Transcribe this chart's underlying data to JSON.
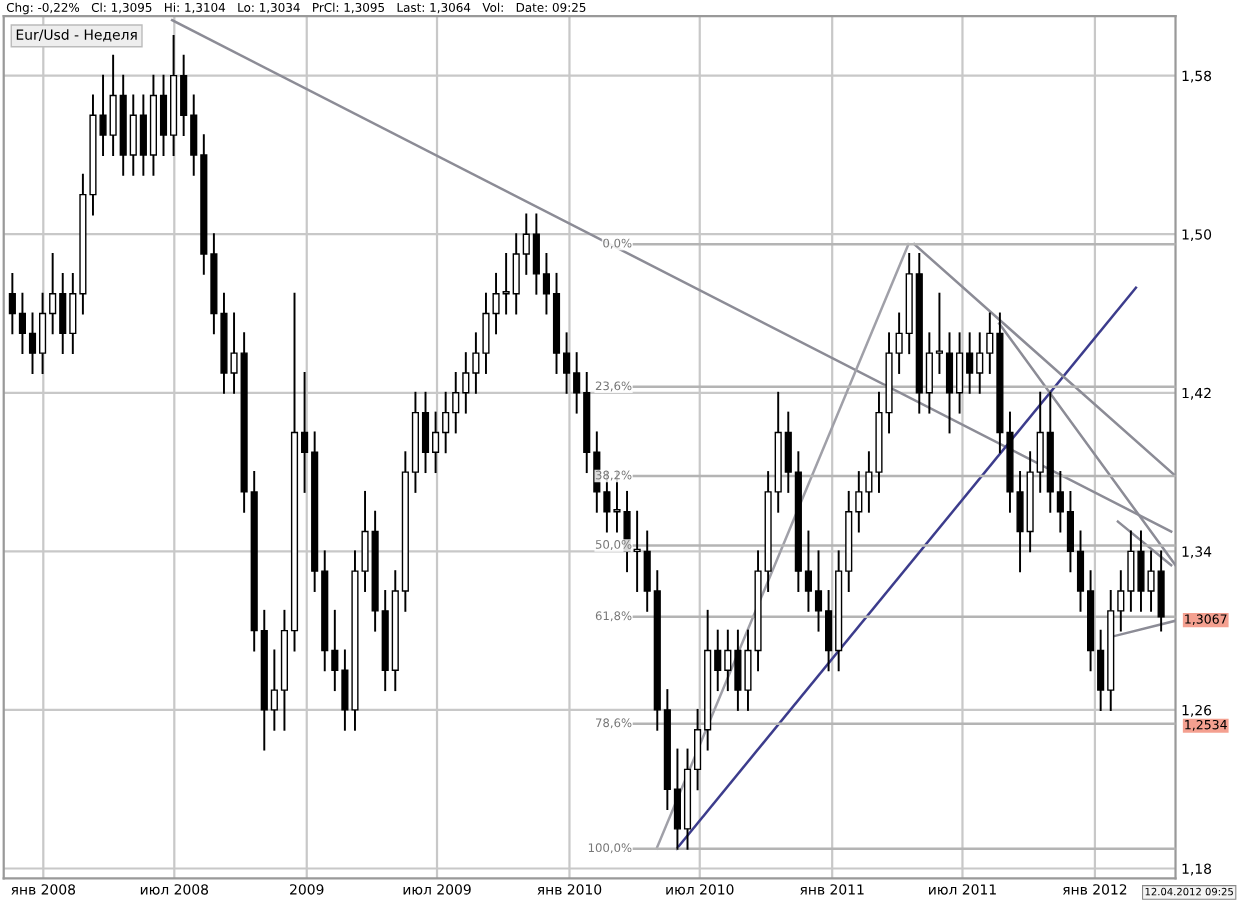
{
  "chart_data": {
    "type": "candlestick",
    "title": "Eur/Usd - Неделя",
    "x": [
      "2007-11-19",
      "2007-12-03",
      "2007-12-17",
      "2007-12-31",
      "2008-01-14",
      "2008-01-28",
      "2008-02-11",
      "2008-02-25",
      "2008-03-10",
      "2008-03-24",
      "2008-04-07",
      "2008-04-21",
      "2008-05-05",
      "2008-05-19",
      "2008-06-02",
      "2008-06-16",
      "2008-06-30",
      "2008-07-14",
      "2008-07-28",
      "2008-08-11",
      "2008-08-25",
      "2008-09-08",
      "2008-09-22",
      "2008-10-06",
      "2008-10-20",
      "2008-11-03",
      "2008-11-17",
      "2008-12-01",
      "2008-12-15",
      "2008-12-29",
      "2009-01-12",
      "2009-01-26",
      "2009-02-09",
      "2009-02-23",
      "2009-03-09",
      "2009-03-23",
      "2009-04-06",
      "2009-04-20",
      "2009-05-04",
      "2009-05-18",
      "2009-06-01",
      "2009-06-15",
      "2009-06-29",
      "2009-07-13",
      "2009-07-27",
      "2009-08-10",
      "2009-08-24",
      "2009-09-07",
      "2009-09-21",
      "2009-10-05",
      "2009-10-19",
      "2009-11-02",
      "2009-11-16",
      "2009-11-30",
      "2009-12-14",
      "2009-12-28",
      "2010-01-11",
      "2010-01-25",
      "2010-02-08",
      "2010-02-22",
      "2010-03-08",
      "2010-03-22",
      "2010-04-05",
      "2010-04-19",
      "2010-05-03",
      "2010-05-17",
      "2010-05-31",
      "2010-06-14",
      "2010-06-28",
      "2010-07-12",
      "2010-07-26",
      "2010-08-09",
      "2010-08-23",
      "2010-09-06",
      "2010-09-20",
      "2010-10-04",
      "2010-10-18",
      "2010-11-01",
      "2010-11-15",
      "2010-11-29",
      "2010-12-13",
      "2010-12-27",
      "2011-01-10",
      "2011-01-24",
      "2011-02-07",
      "2011-02-21",
      "2011-03-07",
      "2011-03-21",
      "2011-04-04",
      "2011-04-18",
      "2011-05-02",
      "2011-05-16",
      "2011-05-30",
      "2011-06-13",
      "2011-06-27",
      "2011-07-11",
      "2011-07-25",
      "2011-08-08",
      "2011-08-22",
      "2011-09-05",
      "2011-09-19",
      "2011-10-03",
      "2011-10-17",
      "2011-10-31",
      "2011-11-14",
      "2011-11-28",
      "2011-12-12",
      "2011-12-26",
      "2012-01-09",
      "2012-01-23",
      "2012-02-06",
      "2012-02-20",
      "2012-03-05",
      "2012-03-19",
      "2012-04-02"
    ],
    "ohlc": [
      [
        1.47,
        1.48,
        1.45,
        1.46
      ],
      [
        1.46,
        1.47,
        1.44,
        1.45
      ],
      [
        1.45,
        1.46,
        1.43,
        1.44
      ],
      [
        1.44,
        1.47,
        1.43,
        1.46
      ],
      [
        1.46,
        1.49,
        1.45,
        1.47
      ],
      [
        1.47,
        1.48,
        1.44,
        1.45
      ],
      [
        1.45,
        1.48,
        1.44,
        1.47
      ],
      [
        1.47,
        1.53,
        1.46,
        1.52
      ],
      [
        1.52,
        1.57,
        1.51,
        1.56
      ],
      [
        1.56,
        1.58,
        1.54,
        1.55
      ],
      [
        1.55,
        1.59,
        1.54,
        1.57
      ],
      [
        1.57,
        1.58,
        1.53,
        1.54
      ],
      [
        1.54,
        1.57,
        1.53,
        1.56
      ],
      [
        1.56,
        1.57,
        1.53,
        1.54
      ],
      [
        1.54,
        1.58,
        1.53,
        1.57
      ],
      [
        1.57,
        1.58,
        1.54,
        1.55
      ],
      [
        1.55,
        1.6,
        1.54,
        1.58
      ],
      [
        1.58,
        1.59,
        1.55,
        1.56
      ],
      [
        1.56,
        1.57,
        1.53,
        1.54
      ],
      [
        1.54,
        1.55,
        1.48,
        1.49
      ],
      [
        1.49,
        1.5,
        1.45,
        1.46
      ],
      [
        1.46,
        1.47,
        1.42,
        1.43
      ],
      [
        1.43,
        1.46,
        1.42,
        1.44
      ],
      [
        1.44,
        1.45,
        1.36,
        1.37
      ],
      [
        1.37,
        1.38,
        1.29,
        1.3
      ],
      [
        1.3,
        1.31,
        1.24,
        1.26
      ],
      [
        1.26,
        1.29,
        1.25,
        1.27
      ],
      [
        1.27,
        1.31,
        1.25,
        1.3
      ],
      [
        1.3,
        1.47,
        1.29,
        1.4
      ],
      [
        1.4,
        1.43,
        1.37,
        1.39
      ],
      [
        1.39,
        1.4,
        1.32,
        1.33
      ],
      [
        1.33,
        1.34,
        1.28,
        1.29
      ],
      [
        1.29,
        1.31,
        1.27,
        1.28
      ],
      [
        1.28,
        1.29,
        1.25,
        1.26
      ],
      [
        1.26,
        1.34,
        1.25,
        1.33
      ],
      [
        1.33,
        1.37,
        1.32,
        1.35
      ],
      [
        1.35,
        1.36,
        1.3,
        1.31
      ],
      [
        1.31,
        1.32,
        1.27,
        1.28
      ],
      [
        1.28,
        1.33,
        1.27,
        1.32
      ],
      [
        1.32,
        1.39,
        1.31,
        1.38
      ],
      [
        1.38,
        1.42,
        1.37,
        1.41
      ],
      [
        1.41,
        1.42,
        1.38,
        1.39
      ],
      [
        1.39,
        1.41,
        1.38,
        1.4
      ],
      [
        1.4,
        1.42,
        1.39,
        1.41
      ],
      [
        1.41,
        1.43,
        1.4,
        1.42
      ],
      [
        1.42,
        1.44,
        1.41,
        1.43
      ],
      [
        1.43,
        1.45,
        1.42,
        1.44
      ],
      [
        1.44,
        1.47,
        1.43,
        1.46
      ],
      [
        1.46,
        1.48,
        1.45,
        1.47
      ],
      [
        1.47,
        1.49,
        1.46,
        1.47
      ],
      [
        1.47,
        1.5,
        1.46,
        1.49
      ],
      [
        1.49,
        1.51,
        1.48,
        1.5
      ],
      [
        1.5,
        1.51,
        1.47,
        1.48
      ],
      [
        1.48,
        1.49,
        1.46,
        1.47
      ],
      [
        1.47,
        1.48,
        1.43,
        1.44
      ],
      [
        1.44,
        1.45,
        1.42,
        1.43
      ],
      [
        1.43,
        1.44,
        1.41,
        1.42
      ],
      [
        1.42,
        1.43,
        1.38,
        1.39
      ],
      [
        1.39,
        1.4,
        1.36,
        1.37
      ],
      [
        1.37,
        1.38,
        1.35,
        1.36
      ],
      [
        1.36,
        1.38,
        1.35,
        1.36
      ],
      [
        1.36,
        1.37,
        1.33,
        1.34
      ],
      [
        1.34,
        1.36,
        1.32,
        1.34
      ],
      [
        1.34,
        1.35,
        1.31,
        1.32
      ],
      [
        1.32,
        1.33,
        1.25,
        1.26
      ],
      [
        1.26,
        1.27,
        1.21,
        1.22
      ],
      [
        1.22,
        1.24,
        1.19,
        1.2
      ],
      [
        1.2,
        1.24,
        1.19,
        1.23
      ],
      [
        1.23,
        1.26,
        1.22,
        1.25
      ],
      [
        1.25,
        1.31,
        1.24,
        1.29
      ],
      [
        1.29,
        1.3,
        1.27,
        1.28
      ],
      [
        1.28,
        1.3,
        1.27,
        1.29
      ],
      [
        1.29,
        1.3,
        1.26,
        1.27
      ],
      [
        1.27,
        1.3,
        1.26,
        1.29
      ],
      [
        1.29,
        1.34,
        1.28,
        1.33
      ],
      [
        1.33,
        1.38,
        1.32,
        1.37
      ],
      [
        1.37,
        1.42,
        1.36,
        1.4
      ],
      [
        1.4,
        1.41,
        1.37,
        1.38
      ],
      [
        1.38,
        1.39,
        1.32,
        1.33
      ],
      [
        1.33,
        1.35,
        1.31,
        1.32
      ],
      [
        1.32,
        1.34,
        1.3,
        1.31
      ],
      [
        1.31,
        1.32,
        1.28,
        1.29
      ],
      [
        1.29,
        1.34,
        1.28,
        1.33
      ],
      [
        1.33,
        1.37,
        1.32,
        1.36
      ],
      [
        1.36,
        1.38,
        1.35,
        1.37
      ],
      [
        1.37,
        1.39,
        1.36,
        1.38
      ],
      [
        1.38,
        1.42,
        1.37,
        1.41
      ],
      [
        1.41,
        1.45,
        1.4,
        1.44
      ],
      [
        1.44,
        1.46,
        1.43,
        1.45
      ],
      [
        1.45,
        1.49,
        1.44,
        1.48
      ],
      [
        1.48,
        1.49,
        1.41,
        1.42
      ],
      [
        1.42,
        1.45,
        1.41,
        1.44
      ],
      [
        1.44,
        1.47,
        1.43,
        1.44
      ],
      [
        1.44,
        1.45,
        1.4,
        1.42
      ],
      [
        1.42,
        1.45,
        1.41,
        1.44
      ],
      [
        1.44,
        1.45,
        1.42,
        1.43
      ],
      [
        1.43,
        1.45,
        1.42,
        1.44
      ],
      [
        1.44,
        1.46,
        1.43,
        1.45
      ],
      [
        1.45,
        1.46,
        1.39,
        1.4
      ],
      [
        1.4,
        1.41,
        1.36,
        1.37
      ],
      [
        1.37,
        1.38,
        1.33,
        1.35
      ],
      [
        1.35,
        1.39,
        1.34,
        1.38
      ],
      [
        1.38,
        1.42,
        1.37,
        1.4
      ],
      [
        1.4,
        1.42,
        1.36,
        1.37
      ],
      [
        1.37,
        1.38,
        1.35,
        1.36
      ],
      [
        1.36,
        1.37,
        1.33,
        1.34
      ],
      [
        1.34,
        1.35,
        1.31,
        1.32
      ],
      [
        1.32,
        1.33,
        1.28,
        1.29
      ],
      [
        1.29,
        1.3,
        1.26,
        1.27
      ],
      [
        1.27,
        1.32,
        1.26,
        1.31
      ],
      [
        1.31,
        1.33,
        1.3,
        1.32
      ],
      [
        1.32,
        1.35,
        1.31,
        1.34
      ],
      [
        1.34,
        1.35,
        1.31,
        1.32
      ],
      [
        1.32,
        1.34,
        1.31,
        1.33
      ],
      [
        1.33,
        1.34,
        1.3,
        1.307
      ]
    ],
    "series": [
      {
        "type": "line",
        "color": "#8c8c96",
        "x": [
          "2008-06-28",
          "2012-04-16"
        ],
        "values": [
          1.608,
          1.35
        ]
      },
      {
        "type": "line",
        "color": "#a0a0a8",
        "x": [
          "2010-05-02",
          "2011-04-17"
        ],
        "values": [
          1.19,
          1.495
        ]
      },
      {
        "type": "line",
        "color": "#3c3c8c",
        "x": [
          "2010-05-30",
          "2012-02-27"
        ],
        "values": [
          1.19,
          1.473
        ]
      },
      {
        "type": "line",
        "color": "#8c8c96",
        "x": [
          "2011-04-25",
          "2012-04-22"
        ],
        "values": [
          1.495,
          1.378
        ]
      },
      {
        "type": "line",
        "color": "#8c8c96",
        "x": [
          "2011-08-21",
          "2012-04-22"
        ],
        "values": [
          1.455,
          1.333
        ]
      },
      {
        "type": "line",
        "color": "#8c8c96",
        "x": [
          "2012-02-02",
          "2012-04-16"
        ],
        "values": [
          1.355,
          1.333
        ]
      },
      {
        "type": "line",
        "color": "#8c8c96",
        "x": [
          "2012-01-25",
          "2012-04-22"
        ],
        "values": [
          1.297,
          1.305
        ]
      },
      {
        "type": "line",
        "name": "0,0%",
        "color": "#b4b4b4",
        "x": [
          "2010-03-31",
          "2012-04-22"
        ],
        "values": [
          1.495,
          1.495
        ]
      },
      {
        "type": "line",
        "name": "23,6%",
        "color": "#b4b4b4",
        "x": [
          "2010-03-31",
          "2012-04-22"
        ],
        "values": [
          1.423,
          1.423
        ]
      },
      {
        "type": "line",
        "name": "38,2%",
        "color": "#b4b4b4",
        "x": [
          "2010-03-31",
          "2012-04-22"
        ],
        "values": [
          1.378,
          1.378
        ]
      },
      {
        "type": "line",
        "name": "50,0%",
        "color": "#b4b4b4",
        "x": [
          "2010-03-31",
          "2012-04-22"
        ],
        "values": [
          1.343,
          1.343
        ]
      },
      {
        "type": "line",
        "name": "61,8%",
        "color": "#b4b4b4",
        "x": [
          "2010-03-31",
          "2012-04-22"
        ],
        "values": [
          1.307,
          1.307
        ]
      },
      {
        "type": "line",
        "name": "78,6%",
        "color": "#b4b4b4",
        "x": [
          "2010-03-31",
          "2012-04-22"
        ],
        "values": [
          1.253,
          1.253
        ]
      },
      {
        "type": "line",
        "name": "100,0%",
        "color": "#b4b4b4",
        "x": [
          "2010-03-31",
          "2012-04-22"
        ],
        "values": [
          1.19,
          1.19
        ]
      }
    ],
    "xlim": [
      "2007-11-07",
      "2012-04-22"
    ],
    "xticks": [
      {
        "value": "2008-01-01",
        "label": "янв 2008"
      },
      {
        "value": "2008-07-01",
        "label": "июл 2008"
      },
      {
        "value": "2009-01-01",
        "label": "2009"
      },
      {
        "value": "2009-07-01",
        "label": "июл 2009"
      },
      {
        "value": "2010-01-01",
        "label": "янв 2010"
      },
      {
        "value": "2010-07-01",
        "label": "июл 2010"
      },
      {
        "value": "2011-01-01",
        "label": "янв 2011"
      },
      {
        "value": "2011-07-01",
        "label": "июл 2011"
      },
      {
        "value": "2012-01-01",
        "label": "янв 2012"
      }
    ],
    "ylim": [
      1.175,
      1.61
    ],
    "yticks": [
      {
        "value": 1.18,
        "label": "1,18"
      },
      {
        "value": 1.26,
        "label": "1,26"
      },
      {
        "value": 1.34,
        "label": "1,34"
      },
      {
        "value": 1.42,
        "label": "1,42"
      },
      {
        "value": 1.5,
        "label": "1,50"
      },
      {
        "value": 1.58,
        "label": "1,58"
      }
    ],
    "grid": true,
    "annotations": [
      "Chg: -0,22%   Cl: 1,3095   Hi: 1,3104   Lo: 1,3034   PrCl: 1,3095   Last: 1,3064   Vol:   Date: 09:25",
      "12.04.2012 09:25",
      {
        "text": "1,3067",
        "x": "2012-04-22",
        "y": 1.3067
      },
      {
        "text": "1,2534",
        "x": "2012-04-22",
        "y": 1.2534
      }
    ]
  }
}
